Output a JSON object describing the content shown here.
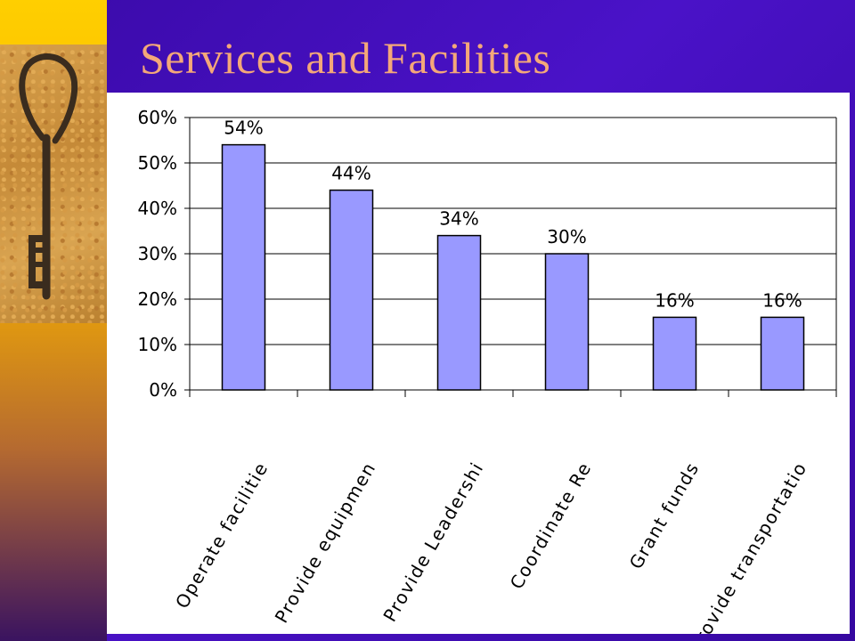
{
  "slide": {
    "title": "Services and Facilities",
    "accent_colors": {
      "background": "#3a0aa8",
      "title": "#f4a779",
      "bar_fill": "#9999ff",
      "bar_stroke": "#000000"
    },
    "decoration": "key-icon"
  },
  "chart_data": {
    "type": "bar",
    "categories": [
      "Operate facilitie",
      "Provide equipmen",
      "Provide Leadershi",
      "Coordinate Re",
      "Grant funds",
      "Provide transportatio"
    ],
    "values": [
      54,
      44,
      34,
      30,
      16,
      16
    ],
    "data_labels": [
      "54%",
      "44%",
      "34%",
      "30%",
      "16%",
      "16%"
    ],
    "ylim": [
      0,
      60
    ],
    "y_ticks": [
      "0%",
      "10%",
      "20%",
      "30%",
      "40%",
      "50%",
      "60%"
    ],
    "title": "",
    "xlabel": "",
    "ylabel": "",
    "grid": true,
    "legend": "none"
  }
}
